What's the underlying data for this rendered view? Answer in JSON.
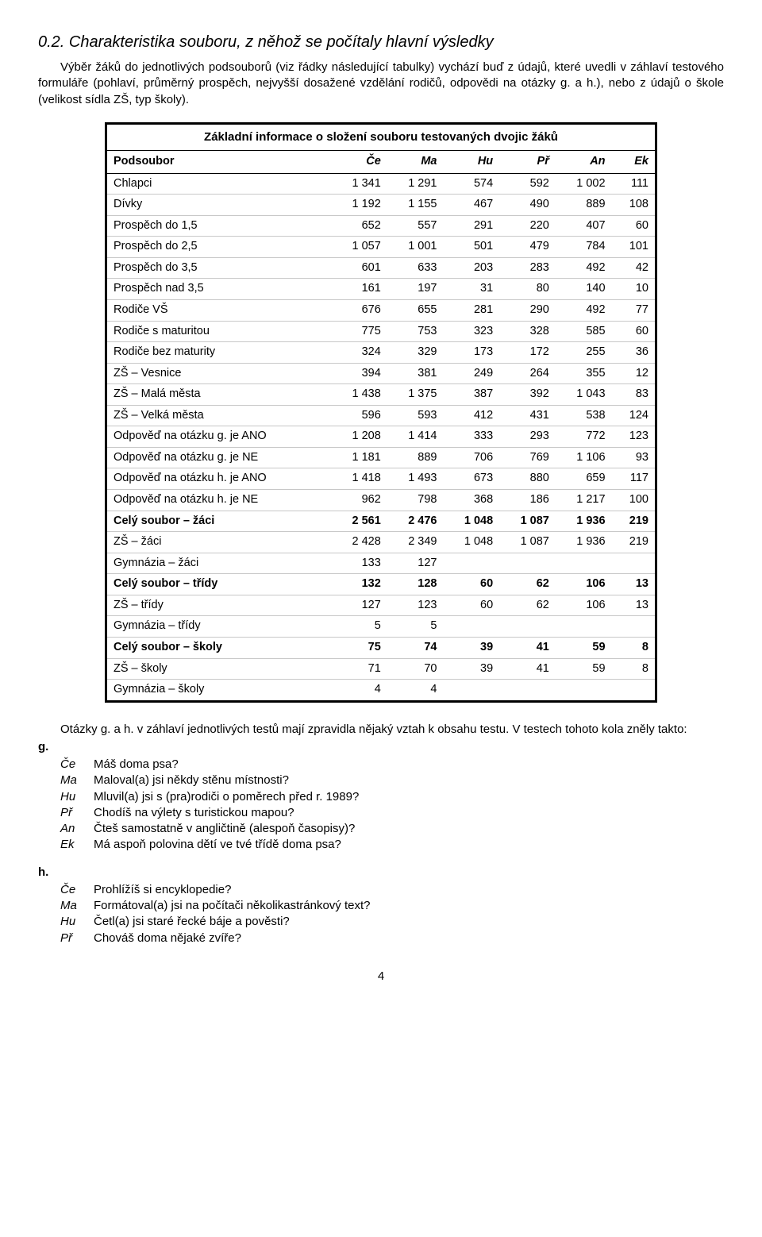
{
  "heading": "0.2. Charakteristika souboru, z něhož se počítaly hlavní výsledky",
  "intro": "Výběr žáků do jednotlivých podsouborů (viz řádky následující tabulky) vychází buď z údajů, které uvedli v záhlaví testového formuláře (pohlaví, průměrný prospěch, nejvyšší dosažené vzdělání rodičů, odpovědi na otázky g. a h.), nebo z údajů o škole (velikost sídla ZŠ, typ školy).",
  "table": {
    "title": "Základní informace o složení souboru testovaných dvojic žáků",
    "columns": [
      "Podsoubor",
      "Če",
      "Ma",
      "Hu",
      "Př",
      "An",
      "Ek"
    ],
    "rows": [
      {
        "label": "Chlapci",
        "cells": [
          "1 341",
          "1 291",
          "574",
          "592",
          "1 002",
          "111"
        ],
        "bold": false
      },
      {
        "label": "Dívky",
        "cells": [
          "1 192",
          "1 155",
          "467",
          "490",
          "889",
          "108"
        ],
        "bold": false
      },
      {
        "label": "Prospěch do 1,5",
        "cells": [
          "652",
          "557",
          "291",
          "220",
          "407",
          "60"
        ],
        "bold": false
      },
      {
        "label": "Prospěch do 2,5",
        "cells": [
          "1 057",
          "1 001",
          "501",
          "479",
          "784",
          "101"
        ],
        "bold": false
      },
      {
        "label": "Prospěch do 3,5",
        "cells": [
          "601",
          "633",
          "203",
          "283",
          "492",
          "42"
        ],
        "bold": false
      },
      {
        "label": "Prospěch nad 3,5",
        "cells": [
          "161",
          "197",
          "31",
          "80",
          "140",
          "10"
        ],
        "bold": false
      },
      {
        "label": "Rodiče VŠ",
        "cells": [
          "676",
          "655",
          "281",
          "290",
          "492",
          "77"
        ],
        "bold": false
      },
      {
        "label": "Rodiče s maturitou",
        "cells": [
          "775",
          "753",
          "323",
          "328",
          "585",
          "60"
        ],
        "bold": false
      },
      {
        "label": "Rodiče bez maturity",
        "cells": [
          "324",
          "329",
          "173",
          "172",
          "255",
          "36"
        ],
        "bold": false
      },
      {
        "label": "ZŠ – Vesnice",
        "cells": [
          "394",
          "381",
          "249",
          "264",
          "355",
          "12"
        ],
        "bold": false
      },
      {
        "label": "ZŠ – Malá města",
        "cells": [
          "1 438",
          "1 375",
          "387",
          "392",
          "1 043",
          "83"
        ],
        "bold": false
      },
      {
        "label": "ZŠ – Velká města",
        "cells": [
          "596",
          "593",
          "412",
          "431",
          "538",
          "124"
        ],
        "bold": false
      },
      {
        "label": "Odpověď na otázku g. je ANO",
        "cells": [
          "1 208",
          "1 414",
          "333",
          "293",
          "772",
          "123"
        ],
        "bold": false
      },
      {
        "label": "Odpověď na otázku g. je NE",
        "cells": [
          "1 181",
          "889",
          "706",
          "769",
          "1 106",
          "93"
        ],
        "bold": false
      },
      {
        "label": "Odpověď na otázku h. je ANO",
        "cells": [
          "1 418",
          "1 493",
          "673",
          "880",
          "659",
          "117"
        ],
        "bold": false
      },
      {
        "label": "Odpověď na otázku h. je NE",
        "cells": [
          "962",
          "798",
          "368",
          "186",
          "1 217",
          "100"
        ],
        "bold": false
      },
      {
        "label": "Celý soubor – žáci",
        "cells": [
          "2 561",
          "2 476",
          "1 048",
          "1 087",
          "1 936",
          "219"
        ],
        "bold": true
      },
      {
        "label": "ZŠ – žáci",
        "cells": [
          "2 428",
          "2 349",
          "1 048",
          "1 087",
          "1 936",
          "219"
        ],
        "bold": false
      },
      {
        "label": "Gymnázia – žáci",
        "cells": [
          "133",
          "127",
          "",
          "",
          "",
          ""
        ],
        "bold": false
      },
      {
        "label": "Celý soubor – třídy",
        "cells": [
          "132",
          "128",
          "60",
          "62",
          "106",
          "13"
        ],
        "bold": true
      },
      {
        "label": "ZŠ – třídy",
        "cells": [
          "127",
          "123",
          "60",
          "62",
          "106",
          "13"
        ],
        "bold": false
      },
      {
        "label": "Gymnázia – třídy",
        "cells": [
          "5",
          "5",
          "",
          "",
          "",
          ""
        ],
        "bold": false
      },
      {
        "label": "Celý soubor – školy",
        "cells": [
          "75",
          "74",
          "39",
          "41",
          "59",
          "8"
        ],
        "bold": true
      },
      {
        "label": "ZŠ – školy",
        "cells": [
          "71",
          "70",
          "39",
          "41",
          "59",
          "8"
        ],
        "bold": false
      },
      {
        "label": "Gymnázia – školy",
        "cells": [
          "4",
          "4",
          "",
          "",
          "",
          ""
        ],
        "bold": false
      }
    ]
  },
  "questions_lead": "Otázky g. a h. v záhlaví jednotlivých testů mají zpravidla nějaký vztah k obsahu testu. V testech tohoto kola zněly takto:",
  "g_label": "g.",
  "g_items": [
    {
      "key": "Če",
      "text": "Máš doma psa?"
    },
    {
      "key": "Ma",
      "text": "Maloval(a) jsi někdy stěnu místnosti?"
    },
    {
      "key": "Hu",
      "text": "Mluvil(a) jsi s (pra)rodiči o poměrech před r. 1989?"
    },
    {
      "key": "Př",
      "text": "Chodíš na výlety s turistickou mapou?"
    },
    {
      "key": "An",
      "text": "Čteš samostatně v angličtině (alespoň časopisy)?"
    },
    {
      "key": "Ek",
      "text": "Má aspoň polovina dětí ve tvé třídě doma psa?"
    }
  ],
  "h_label": "h.",
  "h_items": [
    {
      "key": "Če",
      "text": "Prohlížíš si encyklopedie?"
    },
    {
      "key": "Ma",
      "text": "Formátoval(a) jsi na počítači několikastránkový text?"
    },
    {
      "key": "Hu",
      "text": "Četl(a) jsi staré řecké báje a pověsti?"
    },
    {
      "key": "Př",
      "text": "Chováš doma nějaké zvíře?"
    }
  ],
  "page_number": "4"
}
